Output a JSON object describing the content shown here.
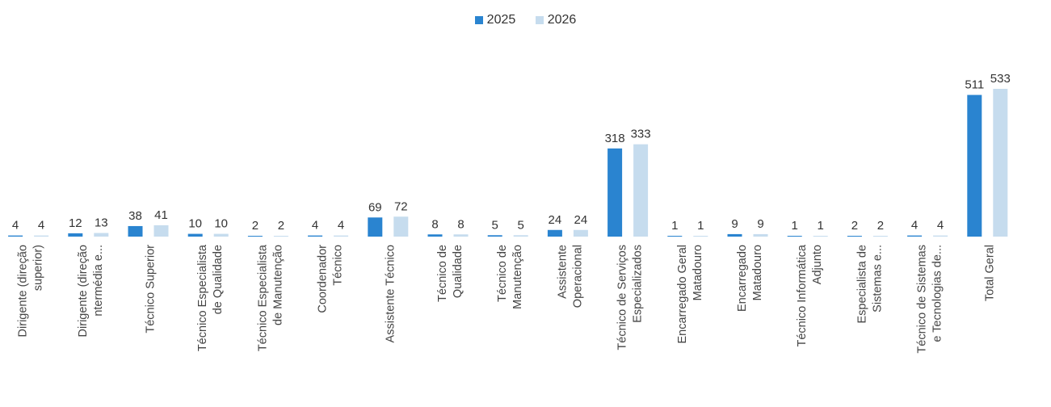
{
  "legend": {
    "items": [
      {
        "name": "2025",
        "color": "#2a84d0"
      },
      {
        "name": "2026",
        "color": "#c6dcee"
      }
    ]
  },
  "chart_data": {
    "type": "bar",
    "categories": [
      [
        "Dirigente (direção",
        "superior)"
      ],
      [
        "Dirigente (direção",
        "ntermédia e..."
      ],
      [
        "Técnico Superior"
      ],
      [
        "Técnico Especialista",
        "de Qualidade"
      ],
      [
        "Técnico Especialista",
        "de Manutenção"
      ],
      [
        "Coordenador",
        "Técnico"
      ],
      [
        "Assistente Técnico"
      ],
      [
        "Técnico de",
        "Qualidade"
      ],
      [
        "Técnico de",
        "Manutenção"
      ],
      [
        "Assistente",
        "Operacional"
      ],
      [
        "Técnico de Serviços",
        "Especializados"
      ],
      [
        "Encarregado Geral",
        "Matadouro"
      ],
      [
        "Encarregado",
        "Matadouro"
      ],
      [
        "Técnico Informática",
        "Adjunto"
      ],
      [
        "Especialista de",
        "Sistemas e..."
      ],
      [
        "Técnico de Sistemas",
        "e Tecnologias de..."
      ],
      [
        "Total Geral"
      ]
    ],
    "series": [
      {
        "name": "2025",
        "color": "#2a84d0",
        "values": [
          4,
          12,
          38,
          10,
          2,
          4,
          69,
          8,
          5,
          24,
          318,
          1,
          9,
          1,
          2,
          4,
          511
        ]
      },
      {
        "name": "2026",
        "color": "#c6dcee",
        "values": [
          4,
          13,
          41,
          10,
          2,
          4,
          72,
          8,
          5,
          24,
          333,
          1,
          9,
          1,
          2,
          4,
          533
        ]
      }
    ],
    "ylim": [
      0,
      533
    ],
    "grid": false,
    "legend_position": "top"
  }
}
